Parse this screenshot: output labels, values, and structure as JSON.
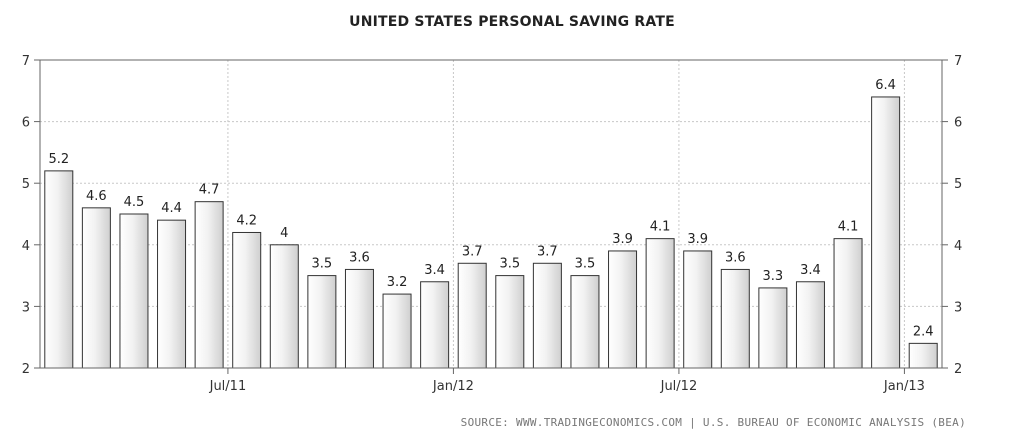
{
  "chart_data": {
    "type": "bar",
    "title": "UNITED STATES PERSONAL SAVING RATE",
    "source": "SOURCE: WWW.TRADINGECONOMICS.COM | U.S. BUREAU OF ECONOMIC ANALYSIS (BEA)",
    "values": [
      5.2,
      4.6,
      4.5,
      4.4,
      4.7,
      4.2,
      4,
      3.5,
      3.6,
      3.2,
      3.4,
      3.7,
      3.5,
      3.7,
      3.5,
      3.9,
      4.1,
      3.9,
      3.6,
      3.3,
      3.4,
      4.1,
      6.4,
      2.4
    ],
    "labels": [
      "5.2",
      "4.6",
      "4.5",
      "4.4",
      "4.7",
      "4.2",
      "4",
      "3.5",
      "3.6",
      "3.2",
      "3.4",
      "3.7",
      "3.5",
      "3.7",
      "3.5",
      "3.9",
      "4.1",
      "3.9",
      "3.6",
      "3.3",
      "3.4",
      "4.1",
      "6.4",
      "2.4"
    ],
    "x_ticks": [
      {
        "label": "Jul/11",
        "at_index": 4.5
      },
      {
        "label": "Jan/12",
        "at_index": 10.5
      },
      {
        "label": "Jul/12",
        "at_index": 16.5
      },
      {
        "label": "Jan/13",
        "at_index": 22.5
      }
    ],
    "y_ticks": [
      "2",
      "3",
      "4",
      "5",
      "6",
      "7"
    ],
    "ylim": [
      2,
      7
    ],
    "grid": true,
    "y_axis_both_sides": true,
    "colors": {
      "bar_fill_top": "#d9d9d9",
      "bar_fill_bottom": "#ffffff",
      "bar_stroke": "#333333",
      "grid": "#c8c8c8",
      "axis": "#666666"
    }
  }
}
